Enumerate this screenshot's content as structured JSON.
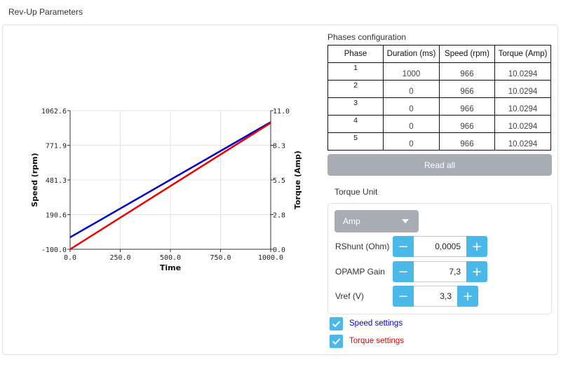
{
  "window": {
    "title": "Rev-Up Parameters"
  },
  "chart_data": {
    "type": "line",
    "xlabel": "Time",
    "ylabel": "Speed (rpm)",
    "y2label": "Torque (Amp)",
    "xlim": [
      0,
      1000
    ],
    "ylim": [
      -100,
      1062.6
    ],
    "y2lim": [
      0,
      11
    ],
    "x_ticks": [
      "0.0",
      "250.0",
      "500.0",
      "750.0",
      "1000.0"
    ],
    "y_ticks": [
      "-100.0",
      "190.6",
      "481.3",
      "771.9",
      "1062.6"
    ],
    "y2_ticks": [
      "0.0",
      "2.8",
      "5.5",
      "8.3",
      "11.0"
    ],
    "grid": true,
    "series": [
      {
        "name": "Speed settings",
        "axis": "left",
        "color": "#0000cc",
        "x": [
          0,
          1000
        ],
        "y": [
          0,
          966
        ]
      },
      {
        "name": "Torque settings",
        "axis": "right",
        "color": "#ee0000",
        "x": [
          0,
          1000
        ],
        "y": [
          0,
          10.0294
        ]
      }
    ]
  },
  "phases": {
    "title": "Phases configuration",
    "headers": [
      "Phase",
      "Duration (ms)",
      "Speed (rpm)",
      "Torque (Amp)"
    ],
    "rows": [
      {
        "phase": "1",
        "duration": "1000",
        "speed": "966",
        "torque": "10.0294"
      },
      {
        "phase": "2",
        "duration": "0",
        "speed": "966",
        "torque": "10.0294"
      },
      {
        "phase": "3",
        "duration": "0",
        "speed": "966",
        "torque": "10.0294"
      },
      {
        "phase": "4",
        "duration": "0",
        "speed": "966",
        "torque": "10.0294"
      },
      {
        "phase": "5",
        "duration": "0",
        "speed": "966",
        "torque": "10.0294"
      }
    ]
  },
  "read_all_label": "Read all",
  "torque_unit": {
    "label": "Torque Unit",
    "selected": "Amp",
    "fields": [
      {
        "label": "RShunt (Ohm)",
        "value": "0,0005"
      },
      {
        "label": "OPAMP Gain",
        "value": "7,3"
      },
      {
        "label": "Vref (V)",
        "value": "3,3"
      }
    ]
  },
  "legend": [
    {
      "label": "Speed settings",
      "checked": true,
      "color": "#0000cc"
    },
    {
      "label": "Torque settings",
      "checked": true,
      "color": "#ee0000"
    }
  ],
  "stepper": {
    "minus": "−",
    "plus": "+"
  }
}
